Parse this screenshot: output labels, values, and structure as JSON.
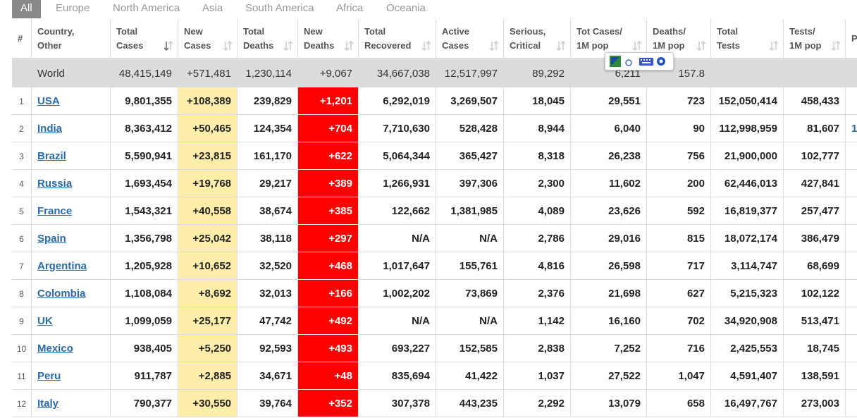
{
  "tabs": [
    "All",
    "Europe",
    "North America",
    "Asia",
    "South America",
    "Africa",
    "Oceania"
  ],
  "table": {
    "headers": [
      [
        "#"
      ],
      [
        "Country,",
        "Other"
      ],
      [
        "Total",
        "Cases"
      ],
      [
        "New",
        "Cases"
      ],
      [
        "Total",
        "Deaths"
      ],
      [
        "New",
        "Deaths"
      ],
      [
        "Total",
        "Recovered"
      ],
      [
        "Active",
        "Cases"
      ],
      [
        "Serious,",
        "Critical"
      ],
      [
        "Tot Cases/",
        "1M pop"
      ],
      [
        "Deaths/",
        "1M pop"
      ],
      [
        "Total",
        "Tests"
      ],
      [
        "Tests/",
        "1M pop"
      ]
    ],
    "rows": [
      {
        "cells": [
          null,
          "World",
          "48,415,149",
          "+571,481",
          "1,230,114",
          "+9,067",
          "34,667,038",
          "12,517,997",
          "89,292",
          "6,211",
          "157.8",
          null,
          null
        ]
      },
      {
        "cells": [
          1,
          "USA",
          "9,801,355",
          "+108,389",
          "239,829",
          "+1,201",
          "6,292,019",
          "3,269,507",
          "18,045",
          "29,551",
          "723",
          "152,050,414",
          "458,433"
        ]
      },
      {
        "cells": [
          2,
          "India",
          "8,363,412",
          "+50,465",
          "124,354",
          "+704",
          "7,710,630",
          "528,428",
          "8,944",
          "6,040",
          "90",
          "112,998,959",
          "81,607"
        ]
      },
      {
        "cells": [
          3,
          "Brazil",
          "5,590,941",
          "+23,815",
          "161,170",
          "+622",
          "5,064,344",
          "365,427",
          "8,318",
          "26,238",
          "756",
          "21,900,000",
          "102,777"
        ]
      },
      {
        "cells": [
          4,
          "Russia",
          "1,693,454",
          "+19,768",
          "29,217",
          "+389",
          "1,266,931",
          "397,306",
          "2,300",
          "11,602",
          "200",
          "62,446,013",
          "427,841"
        ]
      },
      {
        "cells": [
          5,
          "France",
          "1,543,321",
          "+40,558",
          "38,674",
          "+385",
          "122,662",
          "1,381,985",
          "4,089",
          "23,626",
          "592",
          "16,819,377",
          "257,477"
        ]
      },
      {
        "cells": [
          6,
          "Spain",
          "1,356,798",
          "+25,042",
          "38,118",
          "+297",
          "N/A",
          "N/A",
          "2,786",
          "29,016",
          "815",
          "18,072,174",
          "386,479"
        ]
      },
      {
        "cells": [
          7,
          "Argentina",
          "1,205,928",
          "+10,652",
          "32,520",
          "+468",
          "1,017,647",
          "155,761",
          "4,816",
          "26,598",
          "717",
          "3,114,747",
          "68,699"
        ]
      },
      {
        "cells": [
          8,
          "Colombia",
          "1,108,084",
          "+8,692",
          "32,013",
          "+166",
          "1,002,202",
          "73,869",
          "2,376",
          "21,698",
          "627",
          "5,215,323",
          "102,122"
        ]
      },
      {
        "cells": [
          9,
          "UK",
          "1,099,059",
          "+25,177",
          "47,742",
          "+492",
          "N/A",
          "N/A",
          "1,142",
          "16,160",
          "702",
          "34,920,908",
          "513,471"
        ]
      },
      {
        "cells": [
          10,
          "Mexico",
          "938,405",
          "+5,250",
          "92,593",
          "+493",
          "693,227",
          "152,585",
          "2,838",
          "7,252",
          "716",
          "2,425,553",
          "18,745"
        ]
      },
      {
        "cells": [
          11,
          "Peru",
          "911,787",
          "+2,885",
          "34,671",
          "+48",
          "835,694",
          "41,422",
          "1,037",
          "27,522",
          "1,047",
          "4,591,407",
          "138,591"
        ]
      },
      {
        "cells": [
          12,
          "Italy",
          "790,377",
          "+30,550",
          "39,764",
          "+352",
          "307,378",
          "443,235",
          "2,292",
          "13,079",
          "658",
          "16,497,767",
          "273,003"
        ]
      }
    ]
  },
  "clipped_column": {
    "header": "P",
    "cells": [
      null,
      null,
      "1",
      null,
      null,
      null,
      null,
      null,
      null,
      null,
      null,
      null,
      null
    ]
  }
}
